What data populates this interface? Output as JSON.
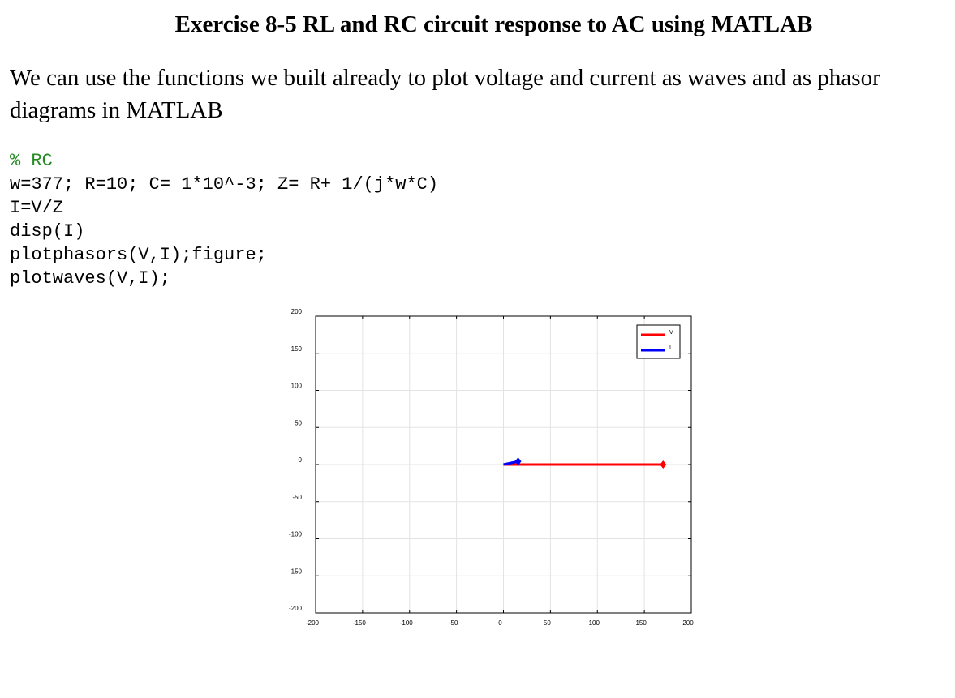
{
  "doc": {
    "title": "Exercise 8-5 RL and RC circuit response to AC using MATLAB",
    "intro": "We can use the functions we built already to plot voltage and current as waves and as phasor diagrams in MATLAB"
  },
  "code": {
    "lines": [
      "% RC",
      "w=377; R=10; C= 1*10^-3; Z= R+ 1/(j*w*C)",
      "I=V/Z",
      "disp(I)",
      "plotphasors(V,I);figure;",
      "plotwaves(V,I);"
    ]
  },
  "chart_data": {
    "type": "line",
    "xlim": [
      -200,
      200
    ],
    "ylim": [
      -200,
      200
    ],
    "x_ticks": [
      "-200",
      "-150",
      "-100",
      "-50",
      "0",
      "50",
      "100",
      "150",
      "200"
    ],
    "y_ticks": [
      "200",
      "150",
      "100",
      "50",
      "0",
      "-50",
      "-100",
      "-150",
      "-200"
    ],
    "grid": true,
    "legend_position": "top-right",
    "series": [
      {
        "name": "V",
        "color": "#ff0000",
        "x": [
          0,
          170
        ],
        "y": [
          0,
          0
        ]
      },
      {
        "name": "I",
        "color": "#0000ff",
        "x": [
          0,
          15.6
        ],
        "y": [
          0,
          4.2
        ]
      }
    ]
  }
}
